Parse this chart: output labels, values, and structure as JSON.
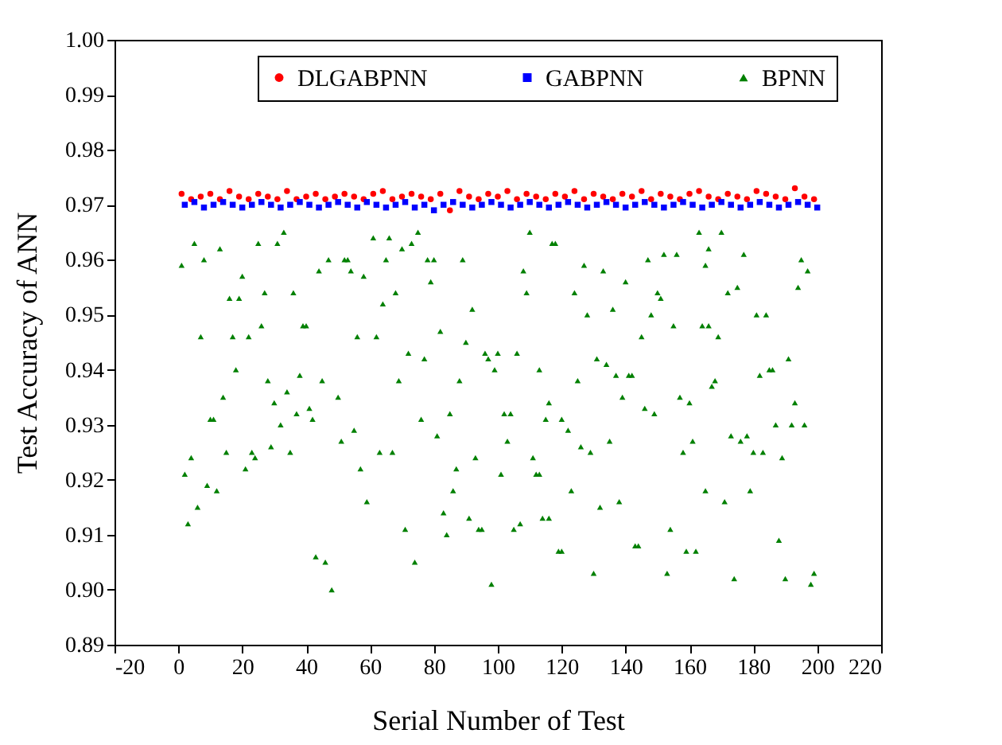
{
  "chart_data": {
    "type": "scatter",
    "xlabel": "Serial Number of Test",
    "ylabel": "Test Accuracy of ANN",
    "xlim": [
      -20,
      220
    ],
    "xticks": [
      -20,
      0,
      20,
      40,
      60,
      80,
      100,
      120,
      140,
      160,
      180,
      200,
      220
    ],
    "ylim": [
      0.89,
      1.0
    ],
    "yticks": [
      0.89,
      {
        "value": 0.9,
        "label": "0.90"
      },
      0.91,
      0.92,
      0.93,
      0.94,
      0.95,
      0.96,
      0.97,
      0.98,
      0.99,
      {
        "value": 1.0,
        "label": "1.00"
      }
    ],
    "grid": false,
    "legend": "top",
    "series": [
      {
        "name": "DLGABPNN",
        "color": "#ff0000",
        "marker": "circle",
        "x": [
          1,
          4,
          7,
          10,
          13,
          16,
          19,
          22,
          25,
          28,
          31,
          34,
          37,
          40,
          43,
          46,
          49,
          52,
          55,
          58,
          61,
          64,
          67,
          70,
          73,
          76,
          79,
          82,
          85,
          88,
          91,
          94,
          97,
          100,
          103,
          106,
          109,
          112,
          115,
          118,
          121,
          124,
          127,
          130,
          133,
          136,
          139,
          142,
          145,
          148,
          151,
          154,
          157,
          160,
          163,
          166,
          169,
          172,
          175,
          178,
          181,
          184,
          187,
          190,
          193,
          196,
          199
        ],
        "values": [
          0.972,
          0.971,
          0.9715,
          0.972,
          0.971,
          0.9725,
          0.9715,
          0.971,
          0.972,
          0.9715,
          0.971,
          0.9725,
          0.971,
          0.9715,
          0.972,
          0.971,
          0.9715,
          0.972,
          0.9715,
          0.971,
          0.972,
          0.9725,
          0.971,
          0.9715,
          0.972,
          0.9715,
          0.971,
          0.972,
          0.969,
          0.9725,
          0.9715,
          0.971,
          0.972,
          0.9715,
          0.9725,
          0.971,
          0.972,
          0.9715,
          0.971,
          0.972,
          0.9715,
          0.9725,
          0.971,
          0.972,
          0.9715,
          0.971,
          0.972,
          0.9715,
          0.9725,
          0.971,
          0.972,
          0.9715,
          0.971,
          0.972,
          0.9725,
          0.9715,
          0.971,
          0.972,
          0.9715,
          0.971,
          0.9725,
          0.972,
          0.9715,
          0.971,
          0.973,
          0.9715,
          0.971
        ]
      },
      {
        "name": "GABPNN",
        "color": "#0000ff",
        "marker": "square",
        "x": [
          2,
          5,
          8,
          11,
          14,
          17,
          20,
          23,
          26,
          29,
          32,
          35,
          38,
          41,
          44,
          47,
          50,
          53,
          56,
          59,
          62,
          65,
          68,
          71,
          74,
          77,
          80,
          83,
          86,
          89,
          92,
          95,
          98,
          101,
          104,
          107,
          110,
          113,
          116,
          119,
          122,
          125,
          128,
          131,
          134,
          137,
          140,
          143,
          146,
          149,
          152,
          155,
          158,
          161,
          164,
          167,
          170,
          173,
          176,
          179,
          182,
          185,
          188,
          191,
          194,
          197,
          200
        ],
        "values": [
          0.97,
          0.9705,
          0.9695,
          0.97,
          0.9705,
          0.97,
          0.9695,
          0.97,
          0.9705,
          0.97,
          0.9695,
          0.97,
          0.9705,
          0.97,
          0.9695,
          0.97,
          0.9705,
          0.97,
          0.9695,
          0.9705,
          0.97,
          0.9695,
          0.97,
          0.9705,
          0.9695,
          0.97,
          0.969,
          0.97,
          0.9705,
          0.97,
          0.9695,
          0.97,
          0.9705,
          0.97,
          0.9695,
          0.97,
          0.9705,
          0.97,
          0.9695,
          0.97,
          0.9705,
          0.97,
          0.9695,
          0.97,
          0.9705,
          0.97,
          0.9695,
          0.97,
          0.9705,
          0.97,
          0.9695,
          0.97,
          0.9705,
          0.97,
          0.9695,
          0.97,
          0.9705,
          0.97,
          0.9695,
          0.97,
          0.9705,
          0.97,
          0.9695,
          0.97,
          0.9705,
          0.97,
          0.9695
        ]
      },
      {
        "name": "BPNN",
        "color": "#008000",
        "marker": "triangle",
        "x": [
          1,
          2,
          3,
          4,
          5,
          6,
          7,
          8,
          9,
          10,
          11,
          12,
          13,
          14,
          15,
          16,
          17,
          18,
          19,
          20,
          21,
          22,
          23,
          24,
          25,
          26,
          27,
          28,
          29,
          30,
          31,
          32,
          33,
          34,
          35,
          36,
          37,
          38,
          39,
          40,
          41,
          42,
          43,
          44,
          45,
          46,
          47,
          48,
          50,
          51,
          52,
          53,
          54,
          55,
          56,
          57,
          58,
          59,
          61,
          62,
          63,
          64,
          65,
          66,
          67,
          68,
          69,
          70,
          71,
          72,
          73,
          74,
          75,
          76,
          77,
          78,
          79,
          80,
          81,
          82,
          83,
          84,
          85,
          86,
          87,
          88,
          89,
          90,
          91,
          92,
          93,
          94,
          95,
          96,
          97,
          98,
          99,
          100,
          101,
          102,
          103,
          104,
          105,
          106,
          107,
          108,
          109,
          110,
          111,
          112,
          113,
          113,
          114,
          115,
          116,
          116,
          117,
          118,
          119,
          120,
          120,
          122,
          123,
          124,
          125,
          126,
          127,
          128,
          129,
          130,
          131,
          132,
          133,
          134,
          135,
          136,
          137,
          138,
          139,
          140,
          141,
          142,
          143,
          144,
          145,
          146,
          147,
          148,
          149,
          150,
          151,
          152,
          153,
          154,
          155,
          156,
          157,
          158,
          159,
          160,
          161,
          162,
          163,
          164,
          165,
          165,
          166,
          166,
          167,
          168,
          169,
          170,
          171,
          172,
          173,
          174,
          175,
          176,
          177,
          178,
          179,
          180,
          181,
          182,
          183,
          184,
          185,
          186,
          187,
          188,
          189,
          190,
          191,
          192,
          193,
          194,
          195,
          196,
          197,
          198,
          199
        ],
        "values": [
          0.959,
          0.921,
          0.912,
          0.924,
          0.963,
          0.915,
          0.946,
          0.96,
          0.919,
          0.931,
          0.931,
          0.918,
          0.962,
          0.935,
          0.925,
          0.953,
          0.946,
          0.94,
          0.953,
          0.957,
          0.922,
          0.946,
          0.925,
          0.924,
          0.963,
          0.948,
          0.954,
          0.938,
          0.926,
          0.934,
          0.963,
          0.93,
          0.965,
          0.936,
          0.925,
          0.954,
          0.932,
          0.939,
          0.948,
          0.948,
          0.933,
          0.931,
          0.906,
          0.958,
          0.938,
          0.905,
          0.96,
          0.9,
          0.935,
          0.927,
          0.96,
          0.96,
          0.958,
          0.929,
          0.946,
          0.922,
          0.957,
          0.916,
          0.964,
          0.946,
          0.925,
          0.952,
          0.96,
          0.964,
          0.925,
          0.954,
          0.938,
          0.962,
          0.911,
          0.943,
          0.963,
          0.905,
          0.965,
          0.931,
          0.942,
          0.96,
          0.956,
          0.96,
          0.928,
          0.947,
          0.914,
          0.91,
          0.932,
          0.918,
          0.922,
          0.938,
          0.96,
          0.945,
          0.913,
          0.951,
          0.924,
          0.911,
          0.911,
          0.943,
          0.942,
          0.901,
          0.94,
          0.943,
          0.921,
          0.932,
          0.927,
          0.932,
          0.911,
          0.943,
          0.912,
          0.958,
          0.954,
          0.965,
          0.924,
          0.921,
          0.94,
          0.921,
          0.913,
          0.931,
          0.934,
          0.913,
          0.963,
          0.963,
          0.907,
          0.931,
          0.907,
          0.929,
          0.918,
          0.954,
          0.938,
          0.926,
          0.959,
          0.95,
          0.925,
          0.903,
          0.942,
          0.915,
          0.958,
          0.941,
          0.927,
          0.951,
          0.939,
          0.916,
          0.935,
          0.956,
          0.939,
          0.939,
          0.908,
          0.908,
          0.946,
          0.933,
          0.96,
          0.95,
          0.932,
          0.954,
          0.953,
          0.961,
          0.903,
          0.911,
          0.948,
          0.961,
          0.935,
          0.925,
          0.907,
          0.934,
          0.927,
          0.907,
          0.965,
          0.948,
          0.959,
          0.918,
          0.948,
          0.962,
          0.937,
          0.938,
          0.946,
          0.965,
          0.916,
          0.954,
          0.928,
          0.902,
          0.955,
          0.927,
          0.961,
          0.928,
          0.918,
          0.925,
          0.95,
          0.939,
          0.925,
          0.95,
          0.94,
          0.94,
          0.93,
          0.909,
          0.924,
          0.902,
          0.942,
          0.93,
          0.934,
          0.955,
          0.96,
          0.93,
          0.958,
          0.901,
          0.903
        ]
      }
    ]
  }
}
